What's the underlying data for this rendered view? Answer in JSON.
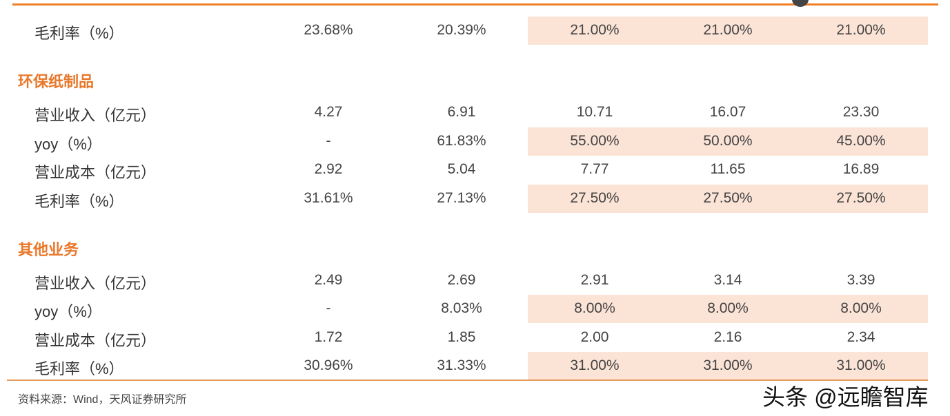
{
  "rows": [
    {
      "label": "毛利率（%）",
      "values": [
        "23.68%",
        "20.39%",
        "21.00%",
        "21.00%",
        "21.00%"
      ],
      "shaded": true
    },
    {
      "section": "环保纸制品"
    },
    {
      "label": "营业收入（亿元）",
      "values": [
        "4.27",
        "6.91",
        "10.71",
        "16.07",
        "23.30"
      ],
      "shaded": false
    },
    {
      "label": "yoy（%）",
      "values": [
        "-",
        "61.83%",
        "55.00%",
        "50.00%",
        "45.00%"
      ],
      "shaded": true
    },
    {
      "label": "营业成本（亿元）",
      "values": [
        "2.92",
        "5.04",
        "7.77",
        "11.65",
        "16.89"
      ],
      "shaded": false
    },
    {
      "label": "毛利率（%）",
      "values": [
        "31.61%",
        "27.13%",
        "27.50%",
        "27.50%",
        "27.50%"
      ],
      "shaded": true
    },
    {
      "section": "其他业务"
    },
    {
      "label": "营业收入（亿元）",
      "values": [
        "2.49",
        "2.69",
        "2.91",
        "3.14",
        "3.39"
      ],
      "shaded": false
    },
    {
      "label": "yoy（%）",
      "values": [
        "-",
        "8.03%",
        "8.00%",
        "8.00%",
        "8.00%"
      ],
      "shaded": true
    },
    {
      "label": "营业成本（亿元）",
      "values": [
        "1.72",
        "1.85",
        "2.00",
        "2.16",
        "2.34"
      ],
      "shaded": false
    },
    {
      "label": "毛利率（%）",
      "values": [
        "30.96%",
        "31.33%",
        "31.00%",
        "31.00%",
        "31.00%"
      ],
      "shaded": true
    }
  ],
  "source": "资料来源：Wind，天风证券研究所",
  "watermark": "头条 @远瞻智库",
  "colors": {
    "accent": "#f07f24",
    "shade": "#fbe3d6"
  }
}
